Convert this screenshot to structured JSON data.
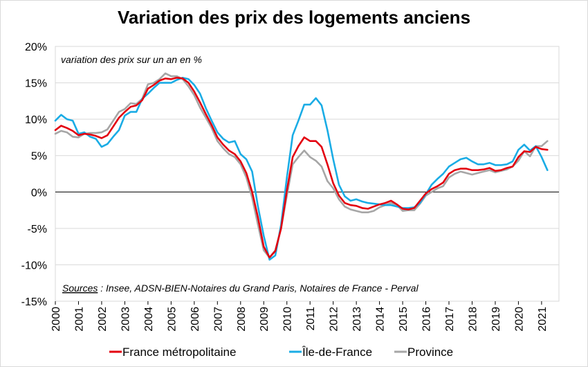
{
  "chart_data": {
    "type": "line",
    "title": "Variation des prix des logements anciens",
    "subtitle": "variation des prix sur un an en %",
    "source_label": "Sources",
    "source_text": " : Insee, ADSN-BIEN-Notaires du Grand Paris, Notaires de France - Perval",
    "ylim": [
      -15,
      20
    ],
    "y_ticks": [
      "20%",
      "15%",
      "10%",
      "5%",
      "0%",
      "-5%",
      "-10%",
      "-15%"
    ],
    "y_tick_values": [
      20,
      15,
      10,
      5,
      0,
      -5,
      -10,
      -15
    ],
    "x_ticks": [
      "2000",
      "2001",
      "2002",
      "2003",
      "2004",
      "2005",
      "2006",
      "2007",
      "2008",
      "2009",
      "2010",
      "2011",
      "2012",
      "2013",
      "2014",
      "2015",
      "2016",
      "2017",
      "2018",
      "2019",
      "2020",
      "2021"
    ],
    "xlim": [
      2000,
      2021.75
    ],
    "grid": true,
    "legend_position": "bottom",
    "x": [
      2000,
      2000.25,
      2000.5,
      2000.75,
      2001,
      2001.25,
      2001.5,
      2001.75,
      2002,
      2002.25,
      2002.5,
      2002.75,
      2003,
      2003.25,
      2003.5,
      2003.75,
      2004,
      2004.25,
      2004.5,
      2004.75,
      2005,
      2005.25,
      2005.5,
      2005.75,
      2006,
      2006.25,
      2006.5,
      2006.75,
      2007,
      2007.25,
      2007.5,
      2007.75,
      2008,
      2008.25,
      2008.5,
      2008.75,
      2009,
      2009.25,
      2009.5,
      2009.75,
      2010,
      2010.25,
      2010.5,
      2010.75,
      2011,
      2011.25,
      2011.5,
      2011.75,
      2012,
      2012.25,
      2012.5,
      2012.75,
      2013,
      2013.25,
      2013.5,
      2013.75,
      2014,
      2014.25,
      2014.5,
      2014.75,
      2015,
      2015.25,
      2015.5,
      2015.75,
      2016,
      2016.25,
      2016.5,
      2016.75,
      2017,
      2017.25,
      2017.5,
      2017.75,
      2018,
      2018.25,
      2018.5,
      2018.75,
      2019,
      2019.25,
      2019.5,
      2019.75,
      2020,
      2020.25,
      2020.5,
      2020.75,
      2021,
      2021.25
    ],
    "series": [
      {
        "name": "France métropolitaine",
        "color": "#e3000f",
        "values": [
          8.5,
          9.1,
          8.8,
          8.4,
          7.8,
          8.0,
          7.9,
          7.7,
          7.4,
          7.8,
          9.0,
          10.2,
          11.0,
          11.7,
          11.9,
          12.6,
          14.2,
          14.7,
          15.3,
          15.6,
          15.5,
          15.7,
          15.6,
          15.0,
          13.8,
          12.3,
          10.7,
          9.2,
          7.5,
          6.5,
          5.7,
          5.2,
          4.2,
          2.6,
          0.0,
          -3.5,
          -7.5,
          -9.0,
          -8.1,
          -5.0,
          0.2,
          4.8,
          6.3,
          7.5,
          7.0,
          7.0,
          6.2,
          3.8,
          1.2,
          -0.5,
          -1.5,
          -1.8,
          -1.9,
          -2.2,
          -2.3,
          -2.0,
          -1.7,
          -1.5,
          -1.2,
          -1.7,
          -2.3,
          -2.4,
          -2.2,
          -1.2,
          -0.2,
          0.4,
          0.8,
          1.3,
          2.5,
          3.0,
          3.2,
          3.2,
          3.0,
          3.0,
          3.1,
          3.3,
          2.9,
          3.0,
          3.3,
          3.5,
          4.8,
          5.6,
          5.5,
          6.2,
          5.9,
          5.8
        ]
      },
      {
        "name": "Île-de-France",
        "color": "#1aace5",
        "values": [
          9.8,
          10.6,
          10.0,
          9.8,
          8.0,
          8.2,
          7.6,
          7.3,
          6.2,
          6.6,
          7.6,
          8.5,
          10.5,
          11.0,
          11.0,
          12.8,
          13.5,
          14.3,
          15.0,
          15.0,
          15.0,
          15.4,
          15.7,
          15.5,
          14.7,
          13.5,
          11.5,
          9.8,
          8.2,
          7.3,
          6.8,
          7.0,
          5.2,
          4.5,
          2.8,
          -2.0,
          -6.0,
          -9.3,
          -8.7,
          -4.5,
          2.0,
          7.8,
          9.8,
          12.0,
          12.0,
          12.9,
          11.9,
          8.5,
          4.5,
          1.0,
          -0.6,
          -1.2,
          -1.0,
          -1.3,
          -1.5,
          -1.6,
          -1.7,
          -1.8,
          -1.8,
          -2.0,
          -2.2,
          -2.2,
          -2.1,
          -1.5,
          -0.3,
          1.0,
          1.8,
          2.5,
          3.5,
          4.0,
          4.5,
          4.7,
          4.2,
          3.8,
          3.8,
          4.0,
          3.7,
          3.7,
          3.8,
          4.2,
          5.8,
          6.5,
          5.7,
          6.3,
          4.8,
          3.0
        ]
      },
      {
        "name": "Province",
        "color": "#a6a6a6",
        "values": [
          8.0,
          8.4,
          8.2,
          7.6,
          7.5,
          8.0,
          8.1,
          8.1,
          8.2,
          8.6,
          9.8,
          11.0,
          11.4,
          12.2,
          12.1,
          12.8,
          14.8,
          15.0,
          15.5,
          16.3,
          15.9,
          15.9,
          15.5,
          14.5,
          13.3,
          11.6,
          10.2,
          8.8,
          7.0,
          6.0,
          5.2,
          4.8,
          3.8,
          2.0,
          -0.8,
          -4.5,
          -8.0,
          -9.0,
          -8.0,
          -5.0,
          -0.5,
          3.8,
          4.8,
          5.7,
          4.8,
          4.3,
          3.5,
          1.5,
          0.5,
          -1.0,
          -2.0,
          -2.4,
          -2.6,
          -2.8,
          -2.8,
          -2.6,
          -2.1,
          -1.8,
          -1.5,
          -1.8,
          -2.6,
          -2.5,
          -2.5,
          -1.6,
          -0.5,
          0.0,
          0.5,
          0.8,
          2.0,
          2.5,
          2.8,
          2.6,
          2.4,
          2.6,
          2.8,
          3.0,
          2.7,
          2.9,
          3.1,
          3.5,
          4.3,
          5.6,
          4.9,
          6.3,
          6.3,
          7.0
        ]
      }
    ]
  }
}
